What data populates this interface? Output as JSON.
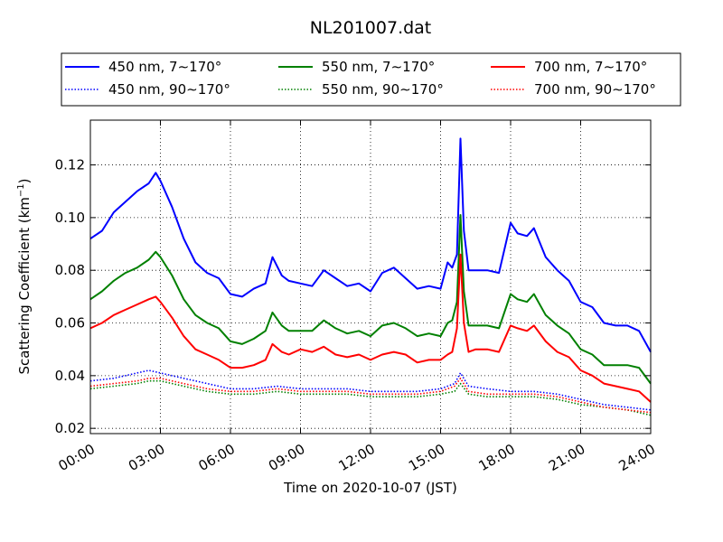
{
  "chart_data": {
    "type": "line",
    "title": "NL201007.dat",
    "xlabel": "Time on 2020-10-07 (JST)",
    "ylabel": "Scattering Coefficient (km",
    "ylabel_sup": "−1",
    "ylabel_close": ")",
    "xlim": [
      0,
      24
    ],
    "ylim": [
      0.018,
      0.137
    ],
    "x_ticks": [
      0,
      3,
      6,
      9,
      12,
      15,
      18,
      21,
      24
    ],
    "x_tick_labels": [
      "00:00",
      "03:00",
      "06:00",
      "09:00",
      "12:00",
      "15:00",
      "18:00",
      "21:00",
      "24:00"
    ],
    "y_ticks": [
      0.02,
      0.04,
      0.06,
      0.08,
      0.1,
      0.12
    ],
    "y_tick_labels": [
      "0.02",
      "0.04",
      "0.06",
      "0.08",
      "0.10",
      "0.12"
    ],
    "grid": true,
    "legend_position": "top",
    "series": [
      {
        "name": "450 nm, 7∼170°",
        "color": "#0000ff",
        "style": "solid",
        "x": [
          0,
          0.5,
          1,
          1.5,
          2,
          2.5,
          2.8,
          3,
          3.5,
          4,
          4.5,
          5,
          5.5,
          6,
          6.5,
          7,
          7.5,
          7.8,
          8.2,
          8.5,
          9,
          9.5,
          10,
          10.5,
          11,
          11.5,
          12,
          12.5,
          13,
          13.5,
          14,
          14.5,
          15,
          15.3,
          15.5,
          15.7,
          15.85,
          16,
          16.2,
          16.5,
          17,
          17.5,
          18,
          18.3,
          18.7,
          19,
          19.5,
          20,
          20.5,
          21,
          21.5,
          22,
          22.5,
          23,
          23.5,
          24
        ],
        "y": [
          0.092,
          0.095,
          0.102,
          0.106,
          0.11,
          0.113,
          0.117,
          0.114,
          0.104,
          0.092,
          0.083,
          0.079,
          0.077,
          0.071,
          0.07,
          0.073,
          0.075,
          0.085,
          0.078,
          0.076,
          0.075,
          0.074,
          0.08,
          0.077,
          0.074,
          0.075,
          0.072,
          0.079,
          0.081,
          0.077,
          0.073,
          0.074,
          0.073,
          0.083,
          0.081,
          0.086,
          0.13,
          0.095,
          0.08,
          0.08,
          0.08,
          0.079,
          0.098,
          0.094,
          0.093,
          0.096,
          0.085,
          0.08,
          0.076,
          0.068,
          0.066,
          0.06,
          0.059,
          0.059,
          0.057,
          0.049
        ]
      },
      {
        "name": "450 nm, 90∼170°",
        "color": "#0000ff",
        "style": "dotted",
        "x": [
          0,
          1,
          2,
          2.5,
          3,
          4,
          5,
          6,
          7,
          8,
          9,
          10,
          11,
          12,
          13,
          14,
          15,
          15.6,
          15.85,
          16.2,
          17,
          18,
          19,
          20,
          21,
          22,
          23,
          24
        ],
        "y": [
          0.038,
          0.039,
          0.041,
          0.042,
          0.041,
          0.039,
          0.037,
          0.035,
          0.035,
          0.036,
          0.035,
          0.035,
          0.035,
          0.034,
          0.034,
          0.034,
          0.035,
          0.037,
          0.041,
          0.036,
          0.035,
          0.034,
          0.034,
          0.033,
          0.031,
          0.029,
          0.028,
          0.027
        ]
      },
      {
        "name": "550 nm, 7∼170°",
        "color": "#008000",
        "style": "solid",
        "x": [
          0,
          0.5,
          1,
          1.5,
          2,
          2.5,
          2.8,
          3,
          3.5,
          4,
          4.5,
          5,
          5.5,
          6,
          6.5,
          7,
          7.5,
          7.8,
          8.2,
          8.5,
          9,
          9.5,
          10,
          10.5,
          11,
          11.5,
          12,
          12.5,
          13,
          13.5,
          14,
          14.5,
          15,
          15.3,
          15.5,
          15.7,
          15.85,
          16,
          16.2,
          16.5,
          17,
          17.5,
          18,
          18.3,
          18.7,
          19,
          19.5,
          20,
          20.5,
          21,
          21.5,
          22,
          22.5,
          23,
          23.5,
          24
        ],
        "y": [
          0.069,
          0.072,
          0.076,
          0.079,
          0.081,
          0.084,
          0.087,
          0.085,
          0.078,
          0.069,
          0.063,
          0.06,
          0.058,
          0.053,
          0.052,
          0.054,
          0.057,
          0.064,
          0.059,
          0.057,
          0.057,
          0.057,
          0.061,
          0.058,
          0.056,
          0.057,
          0.055,
          0.059,
          0.06,
          0.058,
          0.055,
          0.056,
          0.055,
          0.06,
          0.061,
          0.068,
          0.101,
          0.072,
          0.059,
          0.059,
          0.059,
          0.058,
          0.071,
          0.069,
          0.068,
          0.071,
          0.063,
          0.059,
          0.056,
          0.05,
          0.048,
          0.044,
          0.044,
          0.044,
          0.043,
          0.037
        ]
      },
      {
        "name": "550 nm, 90∼170°",
        "color": "#008000",
        "style": "dotted",
        "x": [
          0,
          1,
          2,
          2.5,
          3,
          4,
          5,
          6,
          7,
          8,
          9,
          10,
          11,
          12,
          13,
          14,
          15,
          15.6,
          15.85,
          16.2,
          17,
          18,
          19,
          20,
          21,
          22,
          23,
          24
        ],
        "y": [
          0.035,
          0.036,
          0.037,
          0.038,
          0.038,
          0.036,
          0.034,
          0.033,
          0.033,
          0.034,
          0.033,
          0.033,
          0.033,
          0.032,
          0.032,
          0.032,
          0.033,
          0.034,
          0.037,
          0.033,
          0.032,
          0.032,
          0.032,
          0.031,
          0.029,
          0.028,
          0.027,
          0.025
        ]
      },
      {
        "name": "700 nm, 7∼170°",
        "color": "#ff0000",
        "style": "solid",
        "x": [
          0,
          0.5,
          1,
          1.5,
          2,
          2.5,
          2.8,
          3,
          3.5,
          4,
          4.5,
          5,
          5.5,
          6,
          6.5,
          7,
          7.5,
          7.8,
          8.2,
          8.5,
          9,
          9.5,
          10,
          10.5,
          11,
          11.5,
          12,
          12.5,
          13,
          13.5,
          14,
          14.5,
          15,
          15.3,
          15.5,
          15.7,
          15.85,
          16,
          16.2,
          16.5,
          17,
          17.5,
          18,
          18.3,
          18.7,
          19,
          19.5,
          20,
          20.5,
          21,
          21.5,
          22,
          22.5,
          23,
          23.5,
          24
        ],
        "y": [
          0.058,
          0.06,
          0.063,
          0.065,
          0.067,
          0.069,
          0.07,
          0.068,
          0.062,
          0.055,
          0.05,
          0.048,
          0.046,
          0.043,
          0.043,
          0.044,
          0.046,
          0.052,
          0.049,
          0.048,
          0.05,
          0.049,
          0.051,
          0.048,
          0.047,
          0.048,
          0.046,
          0.048,
          0.049,
          0.048,
          0.045,
          0.046,
          0.046,
          0.048,
          0.049,
          0.058,
          0.086,
          0.06,
          0.049,
          0.05,
          0.05,
          0.049,
          0.059,
          0.058,
          0.057,
          0.059,
          0.053,
          0.049,
          0.047,
          0.042,
          0.04,
          0.037,
          0.036,
          0.035,
          0.034,
          0.03
        ]
      },
      {
        "name": "700 nm, 90∼170°",
        "color": "#ff0000",
        "style": "dotted",
        "x": [
          0,
          1,
          2,
          2.5,
          3,
          4,
          5,
          6,
          7,
          8,
          9,
          10,
          11,
          12,
          13,
          14,
          15,
          15.6,
          15.85,
          16.2,
          17,
          18,
          19,
          20,
          21,
          22,
          23,
          24
        ],
        "y": [
          0.036,
          0.037,
          0.038,
          0.039,
          0.039,
          0.037,
          0.035,
          0.034,
          0.034,
          0.035,
          0.034,
          0.034,
          0.034,
          0.033,
          0.033,
          0.033,
          0.034,
          0.036,
          0.039,
          0.034,
          0.033,
          0.033,
          0.033,
          0.032,
          0.03,
          0.028,
          0.027,
          0.026
        ]
      }
    ]
  }
}
